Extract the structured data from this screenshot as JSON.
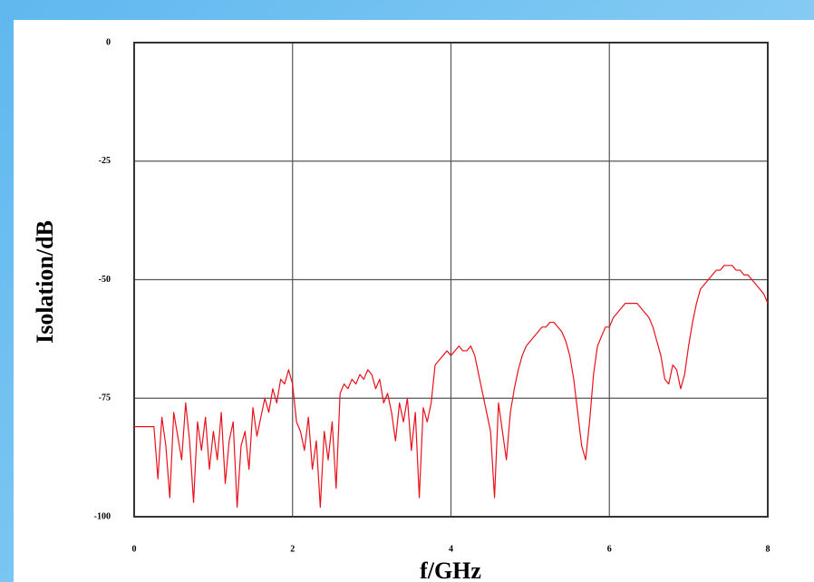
{
  "chart_data": {
    "type": "line",
    "y_label": "Isolation/dB",
    "x_label": "f/GHz",
    "x": [
      0,
      0.25,
      0.3,
      0.35,
      0.4,
      0.45,
      0.5,
      0.55,
      0.6,
      0.65,
      0.7,
      0.75,
      0.8,
      0.85,
      0.9,
      0.95,
      1,
      1.05,
      1.1,
      1.15,
      1.2,
      1.25,
      1.3,
      1.35,
      1.4,
      1.45,
      1.5,
      1.55,
      1.6,
      1.65,
      1.7,
      1.75,
      1.8,
      1.85,
      1.9,
      1.95,
      2,
      2.05,
      2.1,
      2.15,
      2.2,
      2.25,
      2.3,
      2.35,
      2.4,
      2.45,
      2.5,
      2.55,
      2.6,
      2.65,
      2.7,
      2.75,
      2.8,
      2.85,
      2.9,
      2.95,
      3,
      3.05,
      3.1,
      3.15,
      3.2,
      3.25,
      3.3,
      3.35,
      3.4,
      3.45,
      3.5,
      3.55,
      3.6,
      3.65,
      3.7,
      3.75,
      3.8,
      3.85,
      3.9,
      3.95,
      4,
      4.05,
      4.1,
      4.15,
      4.2,
      4.25,
      4.3,
      4.35,
      4.4,
      4.45,
      4.5,
      4.55,
      4.6,
      4.65,
      4.7,
      4.75,
      4.8,
      4.85,
      4.9,
      4.95,
      5,
      5.05,
      5.1,
      5.15,
      5.2,
      5.25,
      5.3,
      5.35,
      5.4,
      5.45,
      5.5,
      5.55,
      5.6,
      5.65,
      5.7,
      5.75,
      5.8,
      5.85,
      5.9,
      5.95,
      6,
      6.05,
      6.1,
      6.15,
      6.2,
      6.25,
      6.3,
      6.35,
      6.4,
      6.45,
      6.5,
      6.55,
      6.6,
      6.65,
      6.7,
      6.75,
      6.8,
      6.85,
      6.9,
      6.95,
      7,
      7.05,
      7.1,
      7.15,
      7.2,
      7.25,
      7.3,
      7.35,
      7.4,
      7.45,
      7.5,
      7.55,
      7.6,
      7.65,
      7.7,
      7.75,
      7.8,
      7.85,
      7.9,
      7.95,
      8
    ],
    "values": [
      -81,
      -81,
      -92,
      -79,
      -85,
      -96,
      -78,
      -83,
      -88,
      -76,
      -84,
      -97,
      -80,
      -86,
      -79,
      -90,
      -82,
      -88,
      -78,
      -93,
      -84,
      -80,
      -98,
      -85,
      -82,
      -90,
      -77,
      -83,
      -79,
      -75,
      -78,
      -73,
      -76,
      -71,
      -72,
      -69,
      -72,
      -80,
      -82,
      -86,
      -79,
      -90,
      -84,
      -98,
      -82,
      -88,
      -80,
      -94,
      -74,
      -72,
      -73,
      -71,
      -72,
      -70,
      -71,
      -69,
      -70,
      -73,
      -71,
      -76,
      -74,
      -78,
      -84,
      -76,
      -80,
      -75,
      -86,
      -78,
      -96,
      -77,
      -80,
      -76,
      -68,
      -67,
      -66,
      -65,
      -66,
      -65,
      -64,
      -65,
      -65,
      -64,
      -66,
      -70,
      -74,
      -78,
      -82,
      -96,
      -76,
      -82,
      -88,
      -78,
      -73,
      -69,
      -66,
      -64,
      -63,
      -62,
      -61,
      -60,
      -60,
      -59,
      -59,
      -60,
      -61,
      -63,
      -66,
      -71,
      -78,
      -85,
      -88,
      -80,
      -70,
      -64,
      -62,
      -60,
      -60,
      -58,
      -57,
      -56,
      -55,
      -55,
      -55,
      -55,
      -56,
      -57,
      -58,
      -60,
      -63,
      -66,
      -71,
      -72,
      -68,
      -69,
      -73,
      -70,
      -64,
      -59,
      -55,
      -52,
      -51,
      -50,
      -49,
      -48,
      -48,
      -47,
      -47,
      -47,
      -48,
      -48,
      -49,
      -49,
      -50,
      -51,
      -52,
      -53,
      -55
    ],
    "color": "#e8101a",
    "xlim": [
      0,
      8
    ],
    "xticks": [
      0,
      2,
      4,
      6,
      8
    ],
    "ylim": [
      -100,
      0
    ],
    "yticks": [
      0,
      -25,
      -50,
      -75,
      -100
    ],
    "grid": true
  }
}
